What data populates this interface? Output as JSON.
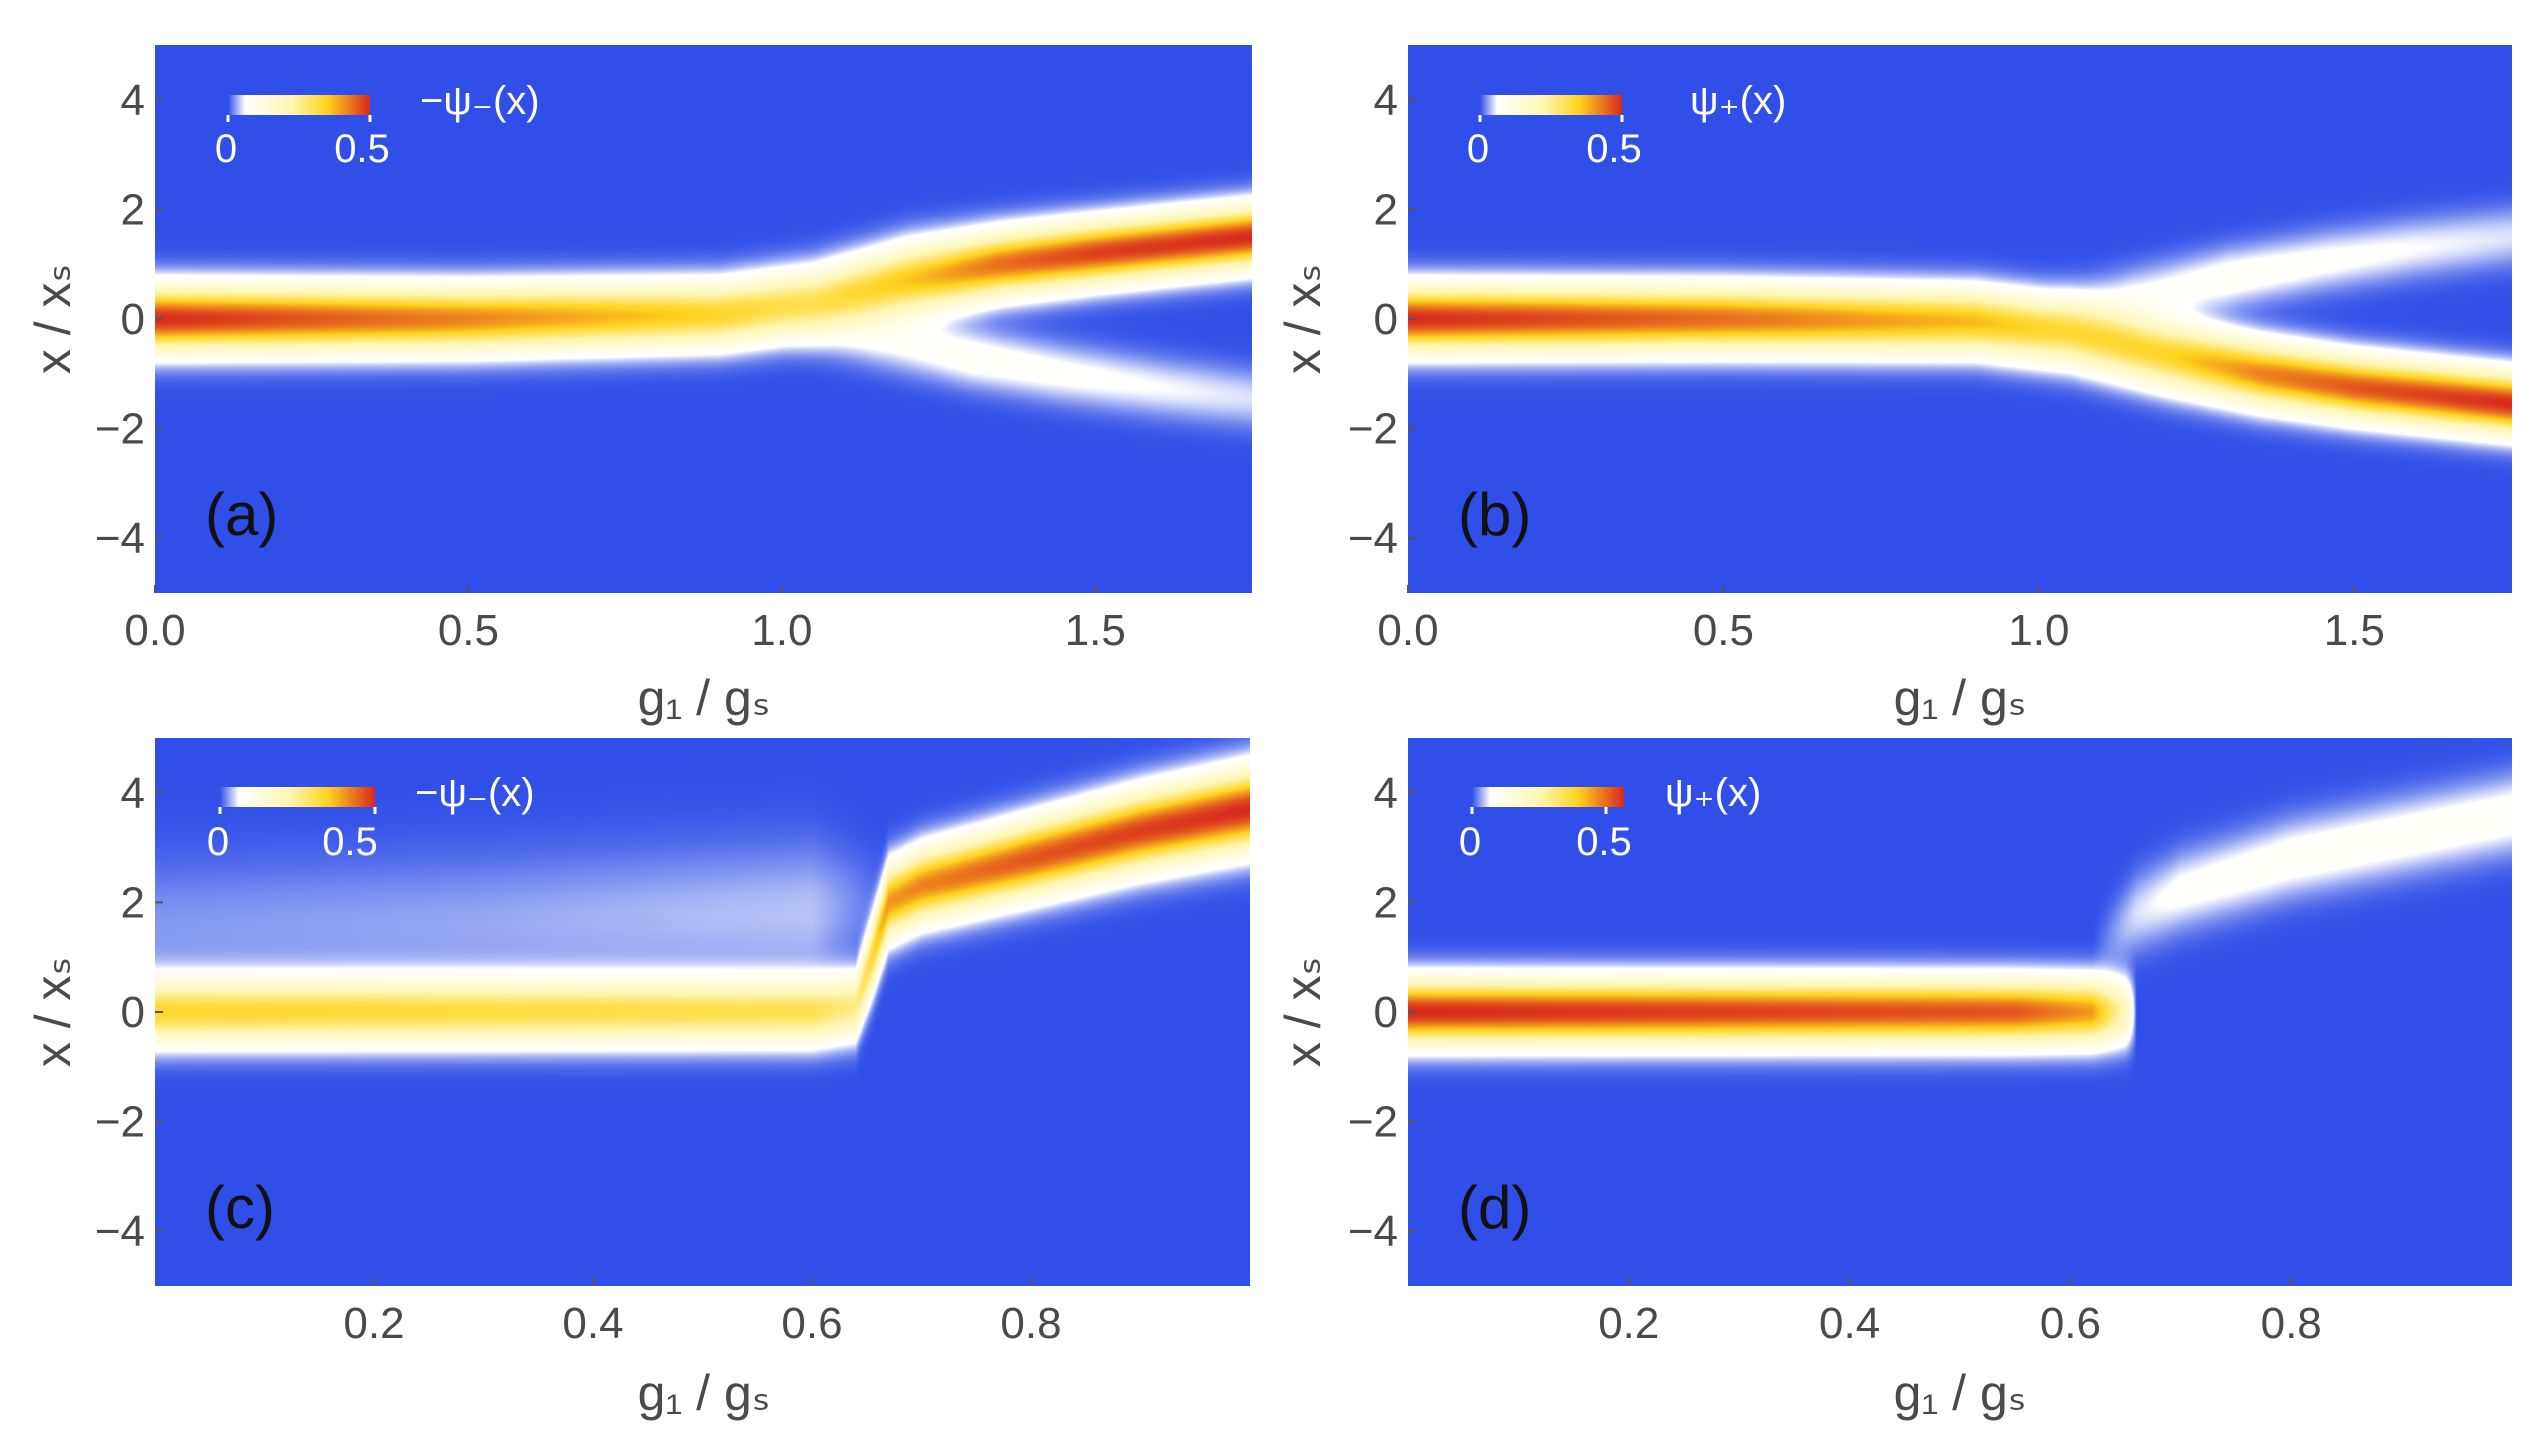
{
  "colors": {
    "background": "#2f4fe8",
    "low": "#ffffff",
    "mid": "#ffd21e",
    "high": "#d8281e",
    "axis_text": "#4a4a4a"
  },
  "chart_data": [
    {
      "type": "heatmap",
      "panel_label": "(a)",
      "colorbar_label": "−ψ₋(x)",
      "colorbar_ticks": [
        "0",
        "0.5"
      ],
      "colorbar_range": [
        0,
        0.5
      ],
      "xlabel": "g₁ / gₛ",
      "ylabel": "x / xₛ",
      "xlim": [
        0.0,
        1.75
      ],
      "ylim": [
        -5,
        5
      ],
      "xticks": [
        0.0,
        0.5,
        1.0,
        1.5
      ],
      "xtick_labels": [
        "0.0",
        "0.5",
        "1.0",
        "1.5"
      ],
      "yticks": [
        -4,
        -2,
        0,
        2,
        4
      ],
      "ytick_labels": [
        "−4",
        "−2",
        "0",
        "2",
        "4"
      ],
      "bands": [
        {
          "x": [
            0.0,
            0.5,
            0.9,
            1.05,
            1.2,
            1.35,
            1.5,
            1.75
          ],
          "center": [
            0,
            0,
            0.08,
            0.3,
            0.7,
            1.0,
            1.2,
            1.5
          ],
          "width": [
            0.55,
            0.55,
            0.55,
            0.57,
            0.6,
            0.55,
            0.53,
            0.52
          ],
          "amp": [
            0.5,
            0.42,
            0.34,
            0.3,
            0.36,
            0.44,
            0.48,
            0.5
          ]
        },
        {
          "x": [
            1.0,
            1.15,
            1.3,
            1.45,
            1.6,
            1.75
          ],
          "center": [
            -0.1,
            -0.35,
            -0.7,
            -1.0,
            -1.25,
            -1.45
          ],
          "width": [
            0.5,
            0.5,
            0.5,
            0.5,
            0.5,
            0.5
          ],
          "amp": [
            0.0,
            0.06,
            0.08,
            0.07,
            0.06,
            0.05
          ]
        }
      ]
    },
    {
      "type": "heatmap",
      "panel_label": "(b)",
      "colorbar_label": "ψ₊(x)",
      "colorbar_ticks": [
        "0",
        "0.5"
      ],
      "colorbar_range": [
        0,
        0.5
      ],
      "xlabel": "g₁ / gₛ",
      "ylabel": "x / xₛ",
      "xlim": [
        0.0,
        1.75
      ],
      "ylim": [
        -5,
        5
      ],
      "xticks": [
        0.0,
        0.5,
        1.0,
        1.5
      ],
      "xtick_labels": [
        "0.0",
        "0.5",
        "1.0",
        "1.5"
      ],
      "yticks": [
        -4,
        -2,
        0,
        2,
        4
      ],
      "ytick_labels": [
        "−4",
        "−2",
        "0",
        "2",
        "4"
      ],
      "bands": [
        {
          "x": [
            0.0,
            0.5,
            0.9,
            1.05,
            1.2,
            1.35,
            1.5,
            1.75
          ],
          "center": [
            0,
            0,
            -0.05,
            -0.25,
            -0.65,
            -1.0,
            -1.25,
            -1.55
          ],
          "width": [
            0.55,
            0.55,
            0.55,
            0.57,
            0.58,
            0.55,
            0.53,
            0.52
          ],
          "amp": [
            0.5,
            0.44,
            0.37,
            0.32,
            0.34,
            0.42,
            0.46,
            0.5
          ]
        },
        {
          "x": [
            1.0,
            1.15,
            1.3,
            1.45,
            1.6,
            1.75
          ],
          "center": [
            0.1,
            0.4,
            0.75,
            1.05,
            1.3,
            1.5
          ],
          "width": [
            0.5,
            0.5,
            0.5,
            0.5,
            0.5,
            0.5
          ],
          "amp": [
            0.0,
            0.06,
            0.08,
            0.07,
            0.06,
            0.05
          ]
        }
      ]
    },
    {
      "type": "heatmap",
      "panel_label": "(c)",
      "colorbar_label": "−ψ₋(x)",
      "colorbar_ticks": [
        "0",
        "0.5"
      ],
      "colorbar_range": [
        0,
        0.5
      ],
      "xlabel": "g₁ / gₛ",
      "ylabel": "x / xₛ",
      "xlim": [
        0.0,
        1.0
      ],
      "ylim": [
        -5,
        5
      ],
      "xticks": [
        0.2,
        0.4,
        0.6,
        0.8
      ],
      "xtick_labels": [
        "0.2",
        "0.4",
        "0.6",
        "0.8"
      ],
      "yticks": [
        -4,
        -2,
        0,
        2,
        4
      ],
      "ytick_labels": [
        "−4",
        "−2",
        "0",
        "2",
        "4"
      ],
      "bands": [
        {
          "x": [
            0.0,
            0.6,
            0.64,
            0.655,
            0.67,
            0.7,
            0.8,
            0.9,
            1.0
          ],
          "center": [
            0,
            0,
            0.1,
            1.0,
            2.0,
            2.3,
            2.8,
            3.3,
            3.7
          ],
          "width": [
            0.55,
            0.55,
            0.55,
            0.6,
            0.62,
            0.62,
            0.64,
            0.66,
            0.68
          ],
          "amp": [
            0.33,
            0.3,
            0.26,
            0.32,
            0.4,
            0.42,
            0.46,
            0.48,
            0.5
          ]
        },
        {
          "x": [
            0.0,
            0.3,
            0.6,
            0.68,
            1.0
          ],
          "center": [
            1.5,
            1.6,
            1.8,
            2.0,
            3.5
          ],
          "width": [
            1.2,
            1.2,
            1.2,
            0.8,
            0.7
          ],
          "amp": [
            0.025,
            0.03,
            0.04,
            0.0,
            0.0
          ]
        }
      ]
    },
    {
      "type": "heatmap",
      "panel_label": "(d)",
      "colorbar_label": "ψ₊(x)",
      "colorbar_ticks": [
        "0",
        "0.5"
      ],
      "colorbar_range": [
        0,
        0.5
      ],
      "xlabel": "g₁ / gₛ",
      "ylabel": "x / xₛ",
      "xlim": [
        0.0,
        1.0
      ],
      "ylim": [
        -5,
        5
      ],
      "xticks": [
        0.2,
        0.4,
        0.6,
        0.8
      ],
      "xtick_labels": [
        "0.2",
        "0.4",
        "0.6",
        "0.8"
      ],
      "yticks": [
        -4,
        -2,
        0,
        2,
        4
      ],
      "ytick_labels": [
        "−4",
        "−2",
        "0",
        "2",
        "4"
      ],
      "bands": [
        {
          "x": [
            0.0,
            0.55,
            0.62,
            0.65,
            0.66,
            1.0
          ],
          "center": [
            0,
            0,
            0,
            0,
            0,
            0
          ],
          "width": [
            0.55,
            0.55,
            0.55,
            0.55,
            0.55,
            0.55
          ],
          "amp": [
            0.5,
            0.46,
            0.4,
            0.2,
            0.0,
            0.0
          ]
        },
        {
          "x": [
            0.62,
            0.66,
            0.7,
            0.8,
            0.9,
            1.0
          ],
          "center": [
            1.0,
            1.8,
            2.2,
            2.8,
            3.2,
            3.6
          ],
          "width": [
            0.6,
            0.65,
            0.65,
            0.65,
            0.65,
            0.65
          ],
          "amp": [
            0.0,
            0.05,
            0.07,
            0.08,
            0.08,
            0.08
          ]
        }
      ]
    }
  ]
}
